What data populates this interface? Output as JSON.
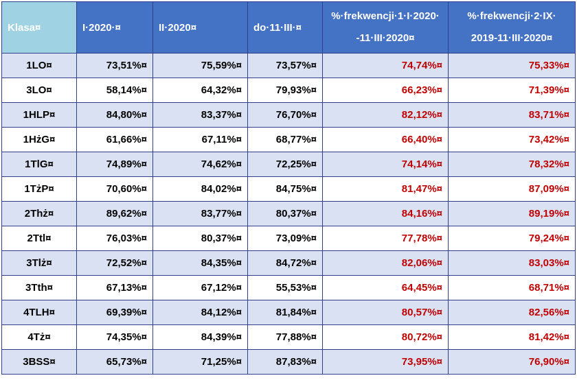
{
  "table": {
    "headers": [
      "Klasa¤",
      "I·2020·¤",
      "II·2020¤",
      "do·11·III·¤",
      "%·frekwencji·1·I·2020· --11·III·2020¤",
      "%·frekwencji·2·IX· 2019-11·III·2020¤"
    ],
    "header_lines": {
      "col4": [
        "%·frekwencji·1·I·2020·",
        "-11·III·2020¤"
      ],
      "col5": [
        "%·frekwencji·2·IX·",
        "2019-11·III·2020¤"
      ]
    },
    "rows": [
      [
        "1LO¤",
        "73,51%¤",
        "75,59%¤",
        "73,57%¤",
        "74,74%¤",
        "75,33%¤"
      ],
      [
        "3LO¤",
        "58,14%¤",
        "64,32%¤",
        "79,93%¤",
        "66,23%¤",
        "71,39%¤"
      ],
      [
        "1HLP¤",
        "84,80%¤",
        "83,37%¤",
        "76,70%¤",
        "82,12%¤",
        "83,71%¤"
      ],
      [
        "1HżG¤",
        "61,66%¤",
        "67,11%¤",
        "68,77%¤",
        "66,40%¤",
        "73,42%¤"
      ],
      [
        "1TlG¤",
        "74,89%¤",
        "74,62%¤",
        "72,25%¤",
        "74,14%¤",
        "78,32%¤"
      ],
      [
        "1TżP¤",
        "70,60%¤",
        "84,02%¤",
        "84,75%¤",
        "81,47%¤",
        "87,09%¤"
      ],
      [
        "2Thż¤",
        "89,62%¤",
        "83,77%¤",
        "80,37%¤",
        "84,16%¤",
        "89,19%¤"
      ],
      [
        "2Ttl¤",
        "76,03%¤",
        "80,37%¤",
        "73,09%¤",
        "77,78%¤",
        "79,24%¤"
      ],
      [
        "3Tlż¤",
        "72,52%¤",
        "84,35%¤",
        "84,72%¤",
        "82,06%¤",
        "83,03%¤"
      ],
      [
        "3Tth¤",
        "67,13%¤",
        "67,12%¤",
        "55,53%¤",
        "64,45%¤",
        "68,71%¤"
      ],
      [
        "4TLH¤",
        "69,39%¤",
        "84,12%¤",
        "81,84%¤",
        "80,57%¤",
        "82,56%¤"
      ],
      [
        "4Tż¤",
        "74,35%¤",
        "84,39%¤",
        "77,88%¤",
        "80,72%¤",
        "81,42%¤"
      ],
      [
        "3BSS¤",
        "65,73%¤",
        "71,25%¤",
        "87,83%¤",
        "73,95%¤",
        "76,90%¤"
      ]
    ]
  },
  "colors": {
    "header_blue": "#4472c4",
    "header_first": "#9fd3e3",
    "band": "#d9e1f2",
    "border": "#2f3f8a",
    "red_values": "#c00000"
  }
}
